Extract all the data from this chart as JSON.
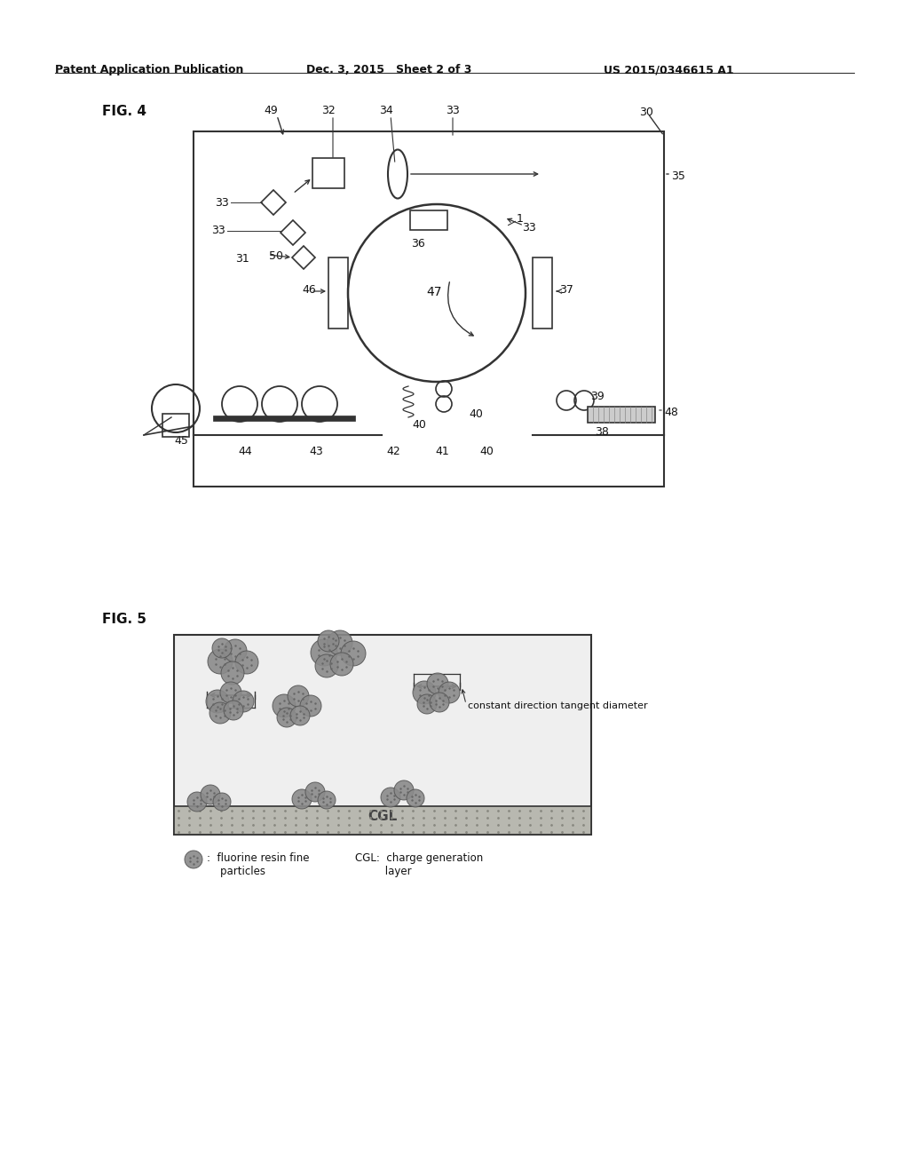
{
  "background_color": "#ffffff",
  "header_left": "Patent Application Publication",
  "header_mid": "Dec. 3, 2015   Sheet 2 of 3",
  "header_right": "US 2015/0346615 A1",
  "fig4_label": "FIG. 4",
  "fig5_label": "FIG. 5",
  "legend_particle_text": ":  fluorine resin fine\n    particles",
  "legend_cgl_text": "CGL:  charge generation\n          layer",
  "cgl_label": "CGL",
  "constant_dir_text": "constant direction tangent diameter",
  "particle_color": "#8a8a8a",
  "cgl_color": "#b5b5b5",
  "line_color": "#333333",
  "bg_color": "#f5f5f0"
}
